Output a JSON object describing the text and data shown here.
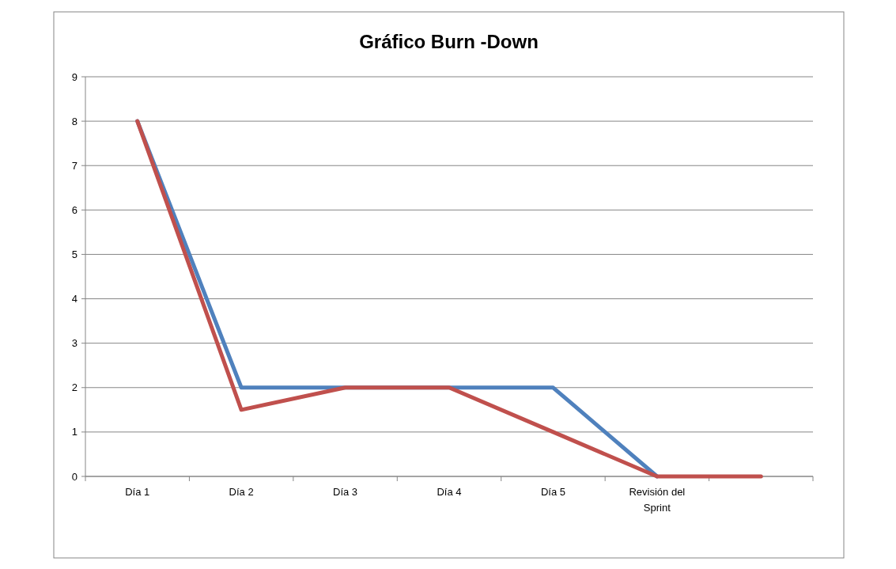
{
  "chart_data": {
    "type": "line",
    "title": "Gráfico  Burn -Down",
    "categories": [
      "Día 1",
      "Día 2",
      "Día 3",
      "Día 4",
      "Día 5",
      "Revisión del Sprint",
      null
    ],
    "series": [
      {
        "color": "#4f81bd",
        "values": [
          8,
          2,
          2,
          2,
          2,
          0,
          null
        ]
      },
      {
        "color": "#c0504d",
        "values": [
          8,
          1.5,
          2,
          2,
          1,
          0,
          0
        ]
      }
    ],
    "ylim": [
      0,
      9
    ],
    "yticks": [
      0,
      1,
      2,
      3,
      4,
      5,
      6,
      7,
      8,
      9
    ],
    "grid": "y",
    "marker": "none",
    "line_style": "solid"
  }
}
